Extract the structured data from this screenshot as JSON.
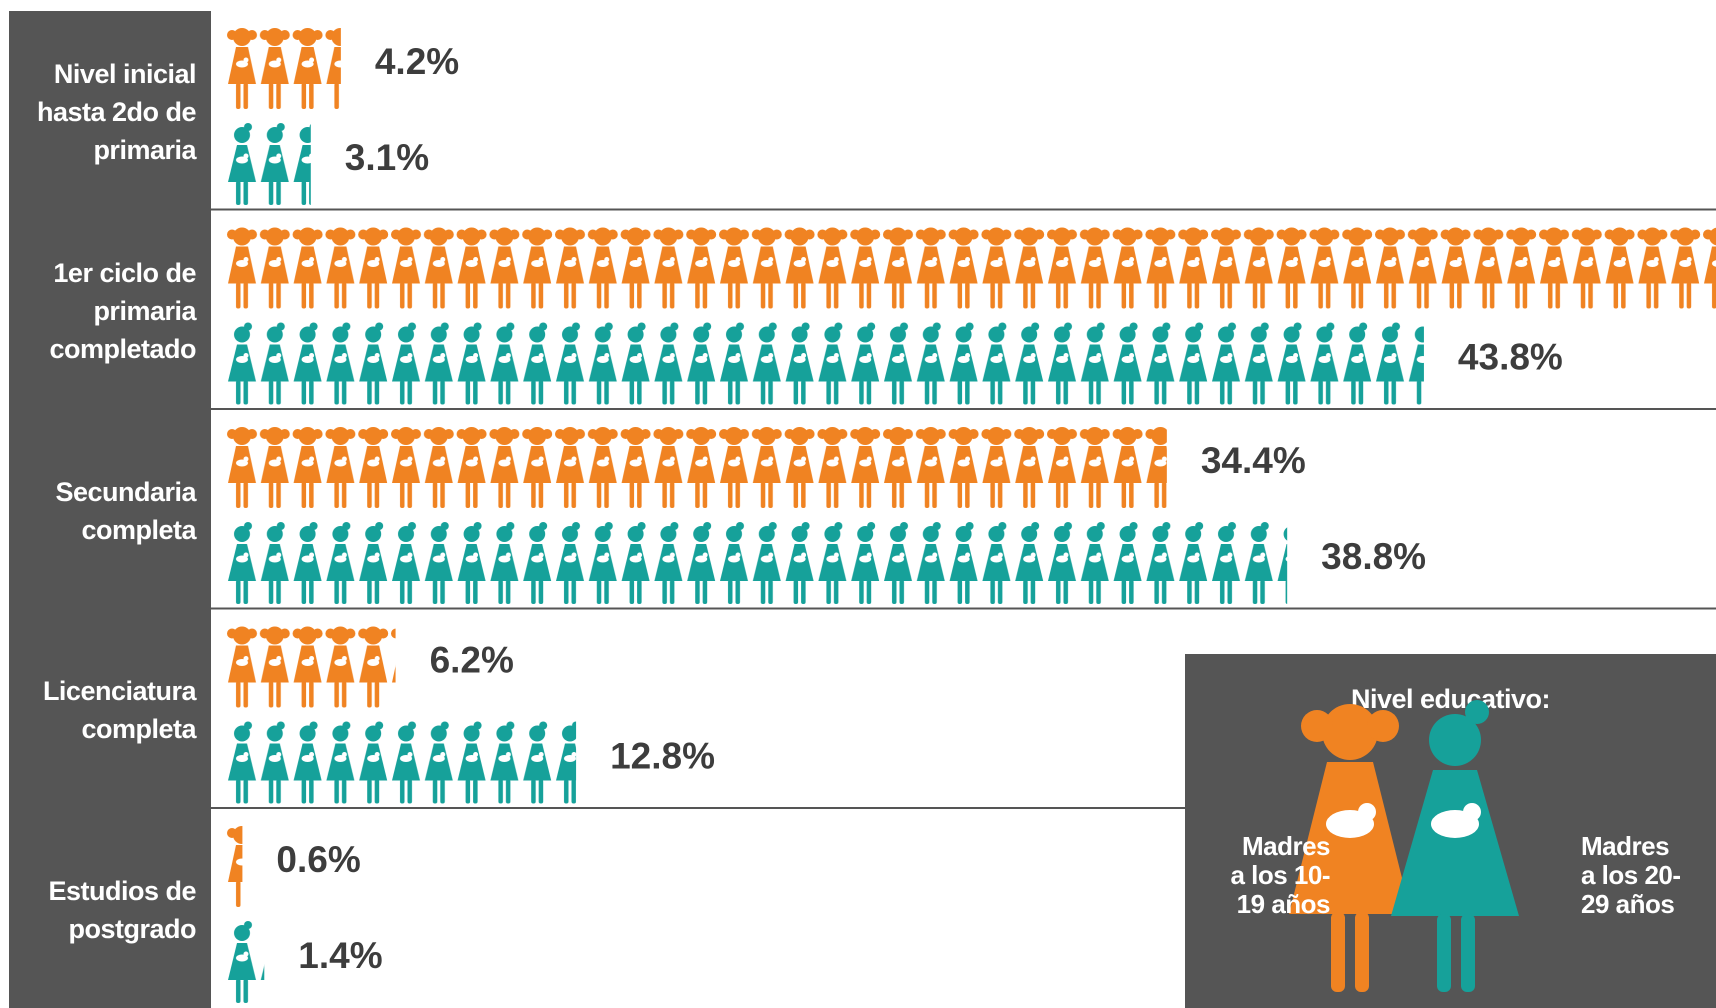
{
  "chart_data": {
    "type": "pictogram",
    "categories": [
      "Nivel inicial hasta 2do de primaria",
      "1er ciclo de primaria completado",
      "Secundaria completa",
      "Licenciatura completa",
      "Estudios de postgrado"
    ],
    "legend_title": "Nivel educativo:",
    "series": [
      {
        "name": "Madres a los 10-19 años",
        "color": "#f08322",
        "values": [
          4.2,
          54.6,
          34.4,
          6.2,
          0.6
        ],
        "value_labels": [
          "4.2%",
          null,
          "34.4%",
          "6.2%",
          "0.6%"
        ]
      },
      {
        "name": "Madres a los 20-29 años",
        "color": "#16a19a",
        "values": [
          3.1,
          43.8,
          38.8,
          12.8,
          1.4
        ],
        "value_labels": [
          "3.1%",
          "43.8%",
          "38.8%",
          "12.8%",
          "1.4%"
        ]
      }
    ]
  }
}
